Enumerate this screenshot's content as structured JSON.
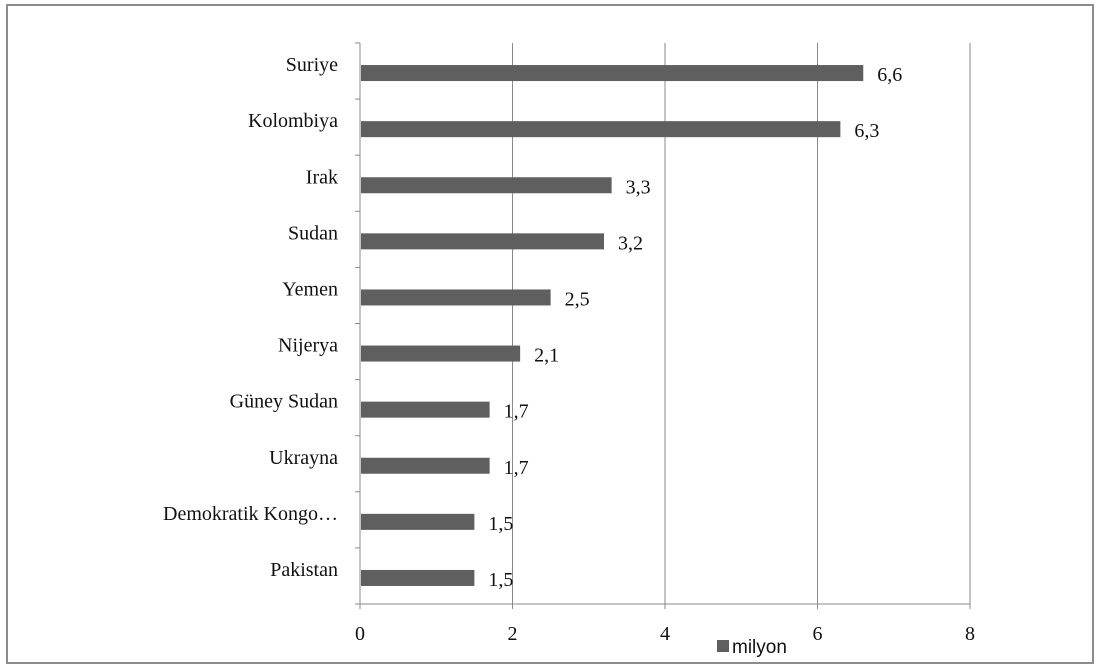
{
  "chart_data": {
    "type": "bar",
    "orientation": "horizontal",
    "categories": [
      "Suriye",
      "Kolombiya",
      "Irak",
      "Sudan",
      "Yemen",
      "Nijerya",
      "Güney Sudan",
      "Ukrayna",
      "Demokratik Kongo…",
      "Pakistan"
    ],
    "series": [
      {
        "name": "milyon",
        "values": [
          6.6,
          6.3,
          3.3,
          3.2,
          2.5,
          2.1,
          1.7,
          1.7,
          1.5,
          1.5
        ]
      }
    ],
    "value_labels": [
      "6,6",
      "6,3",
      "3,3",
      "3,2",
      "2,5",
      "2,1",
      "1,7",
      "1,7",
      "1,5",
      "1,5"
    ],
    "xlim": [
      0,
      8
    ],
    "xticks": [
      0,
      2,
      4,
      6,
      8
    ],
    "xtick_labels": [
      "0",
      "2",
      "4",
      "6",
      "8"
    ],
    "grid": true,
    "legend_position": "bottom",
    "bar_color": "#5f5f5f"
  }
}
